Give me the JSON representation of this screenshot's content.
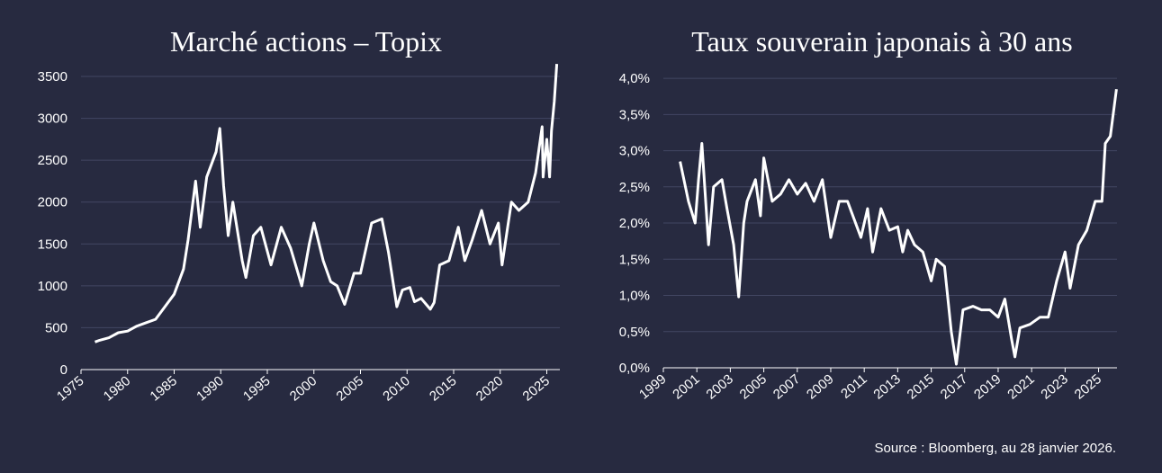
{
  "chart_data": [
    {
      "type": "line",
      "title": "Marché actions – Topix",
      "xlim": [
        1975,
        2026.4
      ],
      "xticks": [
        1975,
        1980,
        1985,
        1990,
        1995,
        2000,
        2005,
        2010,
        2015,
        2020,
        2025
      ],
      "ylim": [
        0,
        3700
      ],
      "yticks": [
        0,
        500,
        1000,
        1500,
        2000,
        2500,
        3000,
        3500
      ],
      "grid": true,
      "series": [
        {
          "color": "#ffffff",
          "x": [
            1976.5,
            1977,
            1978,
            1979,
            1980,
            1981,
            1982,
            1983,
            1984,
            1985,
            1986,
            1986.5,
            1987.3,
            1987.8,
            1988.5,
            1989.5,
            1989.9,
            1990.3,
            1990.8,
            1991.3,
            1992.3,
            1992.7,
            1993.5,
            1994.3,
            1995.4,
            1996.5,
            1997.5,
            1998.7,
            1999.5,
            2000.0,
            2001.0,
            2001.8,
            2002.5,
            2003.3,
            2004.3,
            2005.0,
            2006.2,
            2007.3,
            2008.0,
            2008.9,
            2009.5,
            2010.3,
            2010.8,
            2011.5,
            2012.5,
            2012.9,
            2013.5,
            2014.5,
            2015.5,
            2016.2,
            2017.0,
            2018.0,
            2018.9,
            2019.8,
            2020.2,
            2020.8,
            2021.2,
            2022.0,
            2023.0,
            2023.8,
            2024.5,
            2024.6,
            2025.0,
            2025.3,
            2025.5,
            2025.8,
            2026.07
          ],
          "values": [
            330,
            350,
            380,
            440,
            460,
            520,
            560,
            600,
            750,
            900,
            1200,
            1550,
            2250,
            1700,
            2300,
            2600,
            2880,
            2200,
            1600,
            2000,
            1300,
            1100,
            1600,
            1700,
            1250,
            1700,
            1450,
            1000,
            1500,
            1750,
            1300,
            1050,
            1000,
            780,
            1150,
            1150,
            1750,
            1800,
            1400,
            750,
            950,
            980,
            810,
            850,
            720,
            800,
            1250,
            1300,
            1700,
            1300,
            1550,
            1900,
            1500,
            1750,
            1250,
            1700,
            2000,
            1900,
            2000,
            2350,
            2900,
            2300,
            2750,
            2300,
            2850,
            3200,
            3650
          ]
        }
      ]
    },
    {
      "type": "line",
      "title": "Taux souverain japonais à 30 ans",
      "xlim": [
        1999,
        2026.1
      ],
      "xticks": [
        1999,
        2001,
        2003,
        2005,
        2007,
        2009,
        2011,
        2013,
        2015,
        2017,
        2019,
        2021,
        2023,
        2025
      ],
      "ylim": [
        0,
        4.2
      ],
      "yticks": [
        {
          "value": 0,
          "label": "0,0%"
        },
        {
          "value": 0.5,
          "label": "0,5%"
        },
        {
          "value": 1.0,
          "label": "1,0%"
        },
        {
          "value": 1.5,
          "label": "1,5%"
        },
        {
          "value": 2.0,
          "label": "2,0%"
        },
        {
          "value": 2.5,
          "label": "2,5%"
        },
        {
          "value": 3.0,
          "label": "3,0%"
        },
        {
          "value": 3.5,
          "label": "3,5%"
        },
        {
          "value": 4.0,
          "label": "4,0%"
        }
      ],
      "grid": true,
      "series": [
        {
          "color": "#ffffff",
          "x": [
            2000.0,
            2000.5,
            2000.9,
            2001.1,
            2001.3,
            2001.5,
            2001.7,
            2002.0,
            2002.5,
            2002.8,
            2003.2,
            2003.5,
            2003.8,
            2004.0,
            2004.5,
            2004.8,
            2005.0,
            2005.5,
            2006.0,
            2006.5,
            2007.0,
            2007.5,
            2008.0,
            2008.5,
            2009.0,
            2009.5,
            2010.0,
            2010.8,
            2011.2,
            2011.5,
            2012.0,
            2012.5,
            2013.0,
            2013.3,
            2013.6,
            2014.0,
            2014.5,
            2015.0,
            2015.3,
            2015.8,
            2016.2,
            2016.5,
            2016.9,
            2017.5,
            2018.0,
            2018.5,
            2019.0,
            2019.4,
            2019.8,
            2020.0,
            2020.3,
            2020.9,
            2021.5,
            2022.0,
            2022.5,
            2023.0,
            2023.3,
            2023.8,
            2024.3,
            2024.8,
            2025.2,
            2025.4,
            2025.7,
            2026.07
          ],
          "values": [
            2.85,
            2.3,
            2.0,
            2.6,
            3.1,
            2.4,
            1.7,
            2.5,
            2.6,
            2.2,
            1.7,
            0.98,
            2.0,
            2.3,
            2.6,
            2.1,
            2.9,
            2.3,
            2.4,
            2.6,
            2.4,
            2.55,
            2.3,
            2.6,
            1.8,
            2.3,
            2.3,
            1.8,
            2.2,
            1.6,
            2.2,
            1.9,
            1.95,
            1.6,
            1.9,
            1.7,
            1.6,
            1.2,
            1.5,
            1.4,
            0.5,
            0.05,
            0.8,
            0.85,
            0.8,
            0.8,
            0.7,
            0.95,
            0.4,
            0.15,
            0.55,
            0.6,
            0.7,
            0.7,
            1.2,
            1.6,
            1.1,
            1.7,
            1.9,
            2.3,
            2.3,
            3.1,
            3.2,
            3.85
          ]
        }
      ]
    }
  ],
  "source": "Source : Bloomberg, au 28 janvier 2026."
}
